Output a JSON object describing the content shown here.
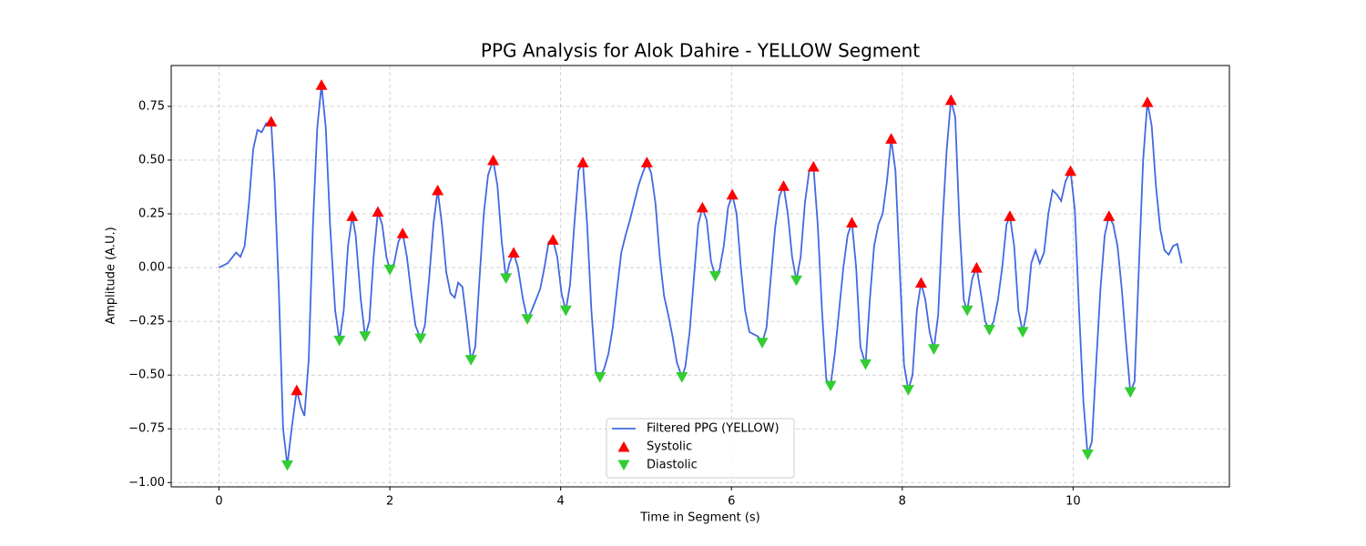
{
  "chart_data": {
    "type": "line",
    "title": "PPG Analysis for Alok Dahire - YELLOW Segment",
    "x_label": "Time in Segment (s)",
    "y_label": "Amplitude (A.U.)",
    "xlim": [
      -0.56,
      11.83
    ],
    "ylim": [
      -1.02,
      0.94
    ],
    "xticks": [
      0,
      2,
      4,
      6,
      8,
      10
    ],
    "yticks": [
      {
        "value": -1,
        "label": "−1.00"
      },
      {
        "value": -0.75,
        "label": "−0.75"
      },
      {
        "value": -0.5,
        "label": "−0.50"
      },
      {
        "value": -0.25,
        "label": "−0.25"
      },
      {
        "value": 0,
        "label": "0.00"
      },
      0.25,
      {
        "value": 0.5,
        "label": "0.50"
      },
      0.75
    ],
    "grid": true,
    "legend": "lower center",
    "series": [
      {
        "name": "Filtered PPG (YELLOW)",
        "type": "line",
        "color": "#4169e1",
        "x": [
          0,
          0.1,
          0.2,
          0.25,
          0.3,
          0.35,
          0.4,
          0.45,
          0.5,
          0.55,
          0.61,
          0.65,
          0.7,
          0.75,
          0.8,
          0.85,
          0.91,
          0.96,
          1.0,
          1.05,
          1.1,
          1.15,
          1.2,
          1.25,
          1.3,
          1.36,
          1.41,
          1.46,
          1.51,
          1.56,
          1.6,
          1.66,
          1.71,
          1.76,
          1.81,
          1.86,
          1.91,
          1.96,
          2.0,
          2.05,
          2.1,
          2.15,
          2.2,
          2.25,
          2.3,
          2.36,
          2.41,
          2.46,
          2.51,
          2.56,
          2.61,
          2.66,
          2.71,
          2.76,
          2.8,
          2.85,
          2.9,
          2.95,
          3.0,
          3.05,
          3.1,
          3.15,
          3.21,
          3.26,
          3.31,
          3.36,
          3.4,
          3.45,
          3.5,
          3.56,
          3.61,
          3.66,
          3.71,
          3.76,
          3.81,
          3.86,
          3.91,
          3.96,
          4.01,
          4.06,
          4.11,
          4.16,
          4.21,
          4.26,
          4.31,
          4.36,
          4.41,
          4.46,
          4.51,
          4.56,
          4.61,
          4.66,
          4.71,
          4.76,
          4.81,
          4.86,
          4.91,
          4.96,
          5.01,
          5.06,
          5.11,
          5.16,
          5.21,
          5.26,
          5.31,
          5.36,
          5.42,
          5.46,
          5.51,
          5.56,
          5.61,
          5.66,
          5.71,
          5.76,
          5.81,
          5.86,
          5.91,
          5.96,
          6.01,
          6.06,
          6.11,
          6.16,
          6.21,
          6.26,
          6.31,
          6.36,
          6.41,
          6.46,
          6.51,
          6.56,
          6.61,
          6.66,
          6.71,
          6.76,
          6.81,
          6.86,
          6.91,
          6.96,
          7.01,
          7.06,
          7.11,
          7.16,
          7.21,
          7.26,
          7.31,
          7.36,
          7.41,
          7.46,
          7.51,
          7.57,
          7.62,
          7.67,
          7.72,
          7.77,
          7.82,
          7.87,
          7.92,
          7.97,
          8.02,
          8.07,
          8.12,
          8.17,
          8.22,
          8.27,
          8.32,
          8.37,
          8.42,
          8.47,
          8.52,
          8.57,
          8.62,
          8.67,
          8.72,
          8.76,
          8.82,
          8.87,
          8.92,
          8.97,
          9.02,
          9.07,
          9.12,
          9.17,
          9.22,
          9.26,
          9.31,
          9.36,
          9.41,
          9.46,
          9.51,
          9.56,
          9.61,
          9.66,
          9.71,
          9.76,
          9.81,
          9.86,
          9.91,
          9.97,
          10.02,
          10.07,
          10.12,
          10.17,
          10.22,
          10.27,
          10.32,
          10.37,
          10.42,
          10.47,
          10.52,
          10.57,
          10.62,
          10.67,
          10.72,
          10.77,
          10.82,
          10.87,
          10.92,
          10.97,
          11.02,
          11.07,
          11.12,
          11.17,
          11.22,
          11.27
        ],
        "values": [
          0,
          0.02,
          0.07,
          0.05,
          0.1,
          0.3,
          0.55,
          0.64,
          0.63,
          0.67,
          0.68,
          0.4,
          -0.1,
          -0.75,
          -0.92,
          -0.75,
          -0.57,
          -0.65,
          -0.69,
          -0.43,
          0.2,
          0.65,
          0.85,
          0.65,
          0.2,
          -0.2,
          -0.34,
          -0.2,
          0.1,
          0.24,
          0.15,
          -0.15,
          -0.32,
          -0.25,
          0.05,
          0.26,
          0.2,
          0.05,
          -0.01,
          0.02,
          0.12,
          0.16,
          0.05,
          -0.12,
          -0.27,
          -0.33,
          -0.27,
          -0.05,
          0.2,
          0.36,
          0.2,
          -0.02,
          -0.12,
          -0.14,
          -0.07,
          -0.09,
          -0.25,
          -0.43,
          -0.37,
          -0.05,
          0.25,
          0.43,
          0.5,
          0.38,
          0.12,
          -0.05,
          0.02,
          0.07,
          0,
          -0.15,
          -0.24,
          -0.2,
          -0.15,
          -0.1,
          0,
          0.12,
          0.13,
          0.05,
          -0.12,
          -0.2,
          -0.08,
          0.2,
          0.45,
          0.49,
          0.2,
          -0.2,
          -0.48,
          -0.51,
          -0.47,
          -0.4,
          -0.28,
          -0.1,
          0.07,
          0.15,
          0.22,
          0.3,
          0.38,
          0.44,
          0.49,
          0.44,
          0.3,
          0.05,
          -0.13,
          -0.22,
          -0.32,
          -0.44,
          -0.51,
          -0.46,
          -0.3,
          -0.05,
          0.2,
          0.28,
          0.22,
          0.03,
          -0.04,
          -0.01,
          0.1,
          0.28,
          0.34,
          0.25,
          0,
          -0.2,
          -0.3,
          -0.31,
          -0.32,
          -0.35,
          -0.28,
          -0.05,
          0.18,
          0.33,
          0.38,
          0.25,
          0.05,
          -0.06,
          0.05,
          0.3,
          0.45,
          0.47,
          0.2,
          -0.2,
          -0.52,
          -0.55,
          -0.4,
          -0.2,
          0,
          0.15,
          0.21,
          0,
          -0.37,
          -0.45,
          -0.15,
          0.1,
          0.2,
          0.25,
          0.4,
          0.6,
          0.45,
          0,
          -0.45,
          -0.57,
          -0.5,
          -0.2,
          -0.07,
          -0.15,
          -0.3,
          -0.38,
          -0.22,
          0.2,
          0.55,
          0.78,
          0.7,
          0.2,
          -0.15,
          -0.2,
          -0.05,
          0,
          -0.12,
          -0.25,
          -0.29,
          -0.25,
          -0.15,
          0,
          0.2,
          0.24,
          0.1,
          -0.2,
          -0.3,
          -0.2,
          0.02,
          0.08,
          0.02,
          0.07,
          0.25,
          0.36,
          0.34,
          0.31,
          0.4,
          0.45,
          0.27,
          -0.2,
          -0.62,
          -0.87,
          -0.81,
          -0.45,
          -0.1,
          0.15,
          0.24,
          0.2,
          0.1,
          -0.1,
          -0.35,
          -0.58,
          -0.53,
          0,
          0.5,
          0.77,
          0.66,
          0.38,
          0.18,
          0.08,
          0.06,
          0.1,
          0.11,
          0.02
        ]
      },
      {
        "name": "Systolic",
        "type": "scatter",
        "marker": "^",
        "color": "#ff0000",
        "x": [
          0.61,
          0.91,
          1.2,
          1.56,
          1.86,
          2.15,
          2.56,
          3.21,
          3.45,
          3.91,
          4.26,
          5.01,
          5.66,
          6.01,
          6.61,
          6.96,
          7.41,
          7.87,
          8.22,
          8.57,
          8.87,
          9.26,
          9.97,
          10.42,
          10.87
        ],
        "values": [
          0.68,
          -0.57,
          0.85,
          0.24,
          0.26,
          0.16,
          0.36,
          0.5,
          0.07,
          0.13,
          0.49,
          0.49,
          0.28,
          0.34,
          0.38,
          0.47,
          0.21,
          0.6,
          -0.07,
          0.78,
          0,
          0.24,
          0.45,
          0.24,
          0.77
        ]
      },
      {
        "name": "Diastolic",
        "type": "scatter",
        "marker": "v",
        "color": "#32cd32",
        "x": [
          0.8,
          1.41,
          1.71,
          2.0,
          2.36,
          2.95,
          3.36,
          3.61,
          4.06,
          4.46,
          5.42,
          5.81,
          6.36,
          6.76,
          7.16,
          7.57,
          8.07,
          8.37,
          8.76,
          9.02,
          9.41,
          10.17,
          10.67
        ],
        "values": [
          -0.92,
          -0.34,
          -0.32,
          -0.01,
          -0.33,
          -0.43,
          -0.05,
          -0.24,
          -0.2,
          -0.51,
          -0.51,
          -0.04,
          -0.35,
          -0.06,
          -0.55,
          -0.45,
          -0.57,
          -0.38,
          -0.2,
          -0.29,
          -0.3,
          -0.87,
          -0.58
        ]
      }
    ]
  }
}
